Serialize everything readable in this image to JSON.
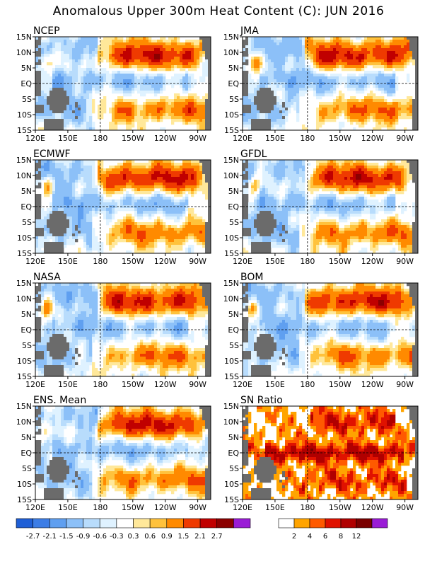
{
  "title": "Anomalous Upper 300m Heat Content (C): JUN 2016",
  "x_tick_labels": [
    "120E",
    "150E",
    "180",
    "150W",
    "120W",
    "90W"
  ],
  "y_tick_labels": [
    "15N",
    "10N",
    "5N",
    "EQ",
    "5S",
    "10S",
    "15S"
  ],
  "panels": [
    {
      "label": "NCEP"
    },
    {
      "label": "JMA"
    },
    {
      "label": "ECMWF"
    },
    {
      "label": "GFDL"
    },
    {
      "label": "NASA"
    },
    {
      "label": "BOM"
    },
    {
      "label": "ENS. Mean"
    },
    {
      "label": "SN Ratio"
    }
  ],
  "legend_anomaly": {
    "labels": [
      "-2.7",
      "-2.1",
      "-1.5",
      "-0.9",
      "-0.6",
      "-0.3",
      "0.3",
      "0.6",
      "0.9",
      "1.5",
      "2.1",
      "2.7"
    ],
    "colors": [
      "#1f5fd6",
      "#3c7de6",
      "#5f9ff0",
      "#8cc0f8",
      "#b8dcfc",
      "#dff2ff",
      "#ffffff",
      "#ffe89a",
      "#ffc23c",
      "#ff8a00",
      "#ef3a00",
      "#c00000",
      "#8b0000",
      "#9a1cd6"
    ]
  },
  "legend_snr": {
    "labels": [
      "2",
      "4",
      "6",
      "8",
      "12"
    ],
    "colors": [
      "#ffffff",
      "#ffa400",
      "#ff5a00",
      "#e01200",
      "#b00000",
      "#7a0000",
      "#9a1cd6"
    ]
  },
  "colors": {
    "land": "#6b6b6b",
    "dashed": "#000000"
  },
  "chart_data": {
    "type": "heatmap",
    "title": "Anomalous Upper 300m Heat Content (C): JUN 2016",
    "x_axis": {
      "ticks": [
        "120E",
        "150E",
        "180",
        "150W",
        "120W",
        "90W"
      ]
    },
    "y_axis": {
      "ticks": [
        "15N",
        "10N",
        "5N",
        "EQ",
        "5S",
        "10S",
        "15S"
      ]
    },
    "panels": [
      "NCEP",
      "JMA",
      "ECMWF",
      "GFDL",
      "NASA",
      "BOM",
      "ENS. Mean",
      "SN Ratio"
    ],
    "contour_levels": [
      -2.7,
      -2.1,
      -1.5,
      -0.9,
      -0.6,
      -0.3,
      0.3,
      0.6,
      0.9,
      1.5,
      2.1,
      2.7
    ],
    "snr_levels": [
      2,
      4,
      6,
      8,
      12
    ],
    "reference_lines": [
      "EQ",
      "180"
    ]
  }
}
